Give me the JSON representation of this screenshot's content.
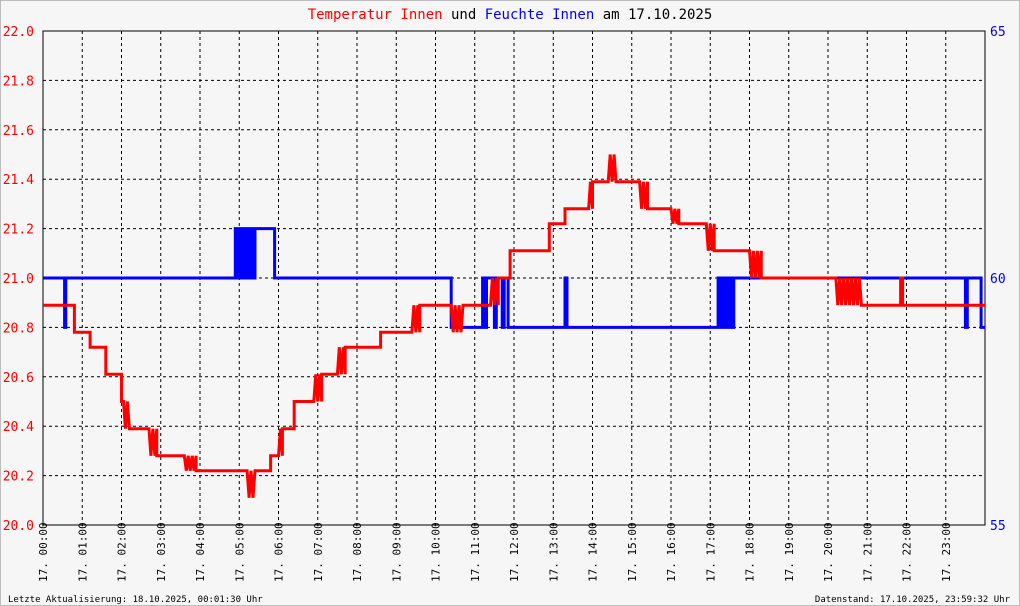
{
  "chart_data": {
    "type": "line",
    "title_parts": [
      {
        "text": "Temperatur Innen",
        "color": "#ff0000"
      },
      {
        "text": " und ",
        "color": "#000000"
      },
      {
        "text": "Feuchte Innen",
        "color": "#0000ff"
      },
      {
        "text": " am 17.10.2025",
        "color": "#000000"
      }
    ],
    "x_unit": "hours",
    "xlim": [
      0,
      24
    ],
    "x_tick_labels": [
      "17. 00:00",
      "17. 01:00",
      "17. 02:00",
      "17. 03:00",
      "17. 04:00",
      "17. 05:00",
      "17. 06:00",
      "17. 07:00",
      "17. 08:00",
      "17. 09:00",
      "17. 10:00",
      "17. 11:00",
      "17. 12:00",
      "17. 13:00",
      "17. 14:00",
      "17. 15:00",
      "17. 16:00",
      "17. 17:00",
      "17. 18:00",
      "17. 19:00",
      "17. 20:00",
      "17. 21:00",
      "17. 22:00",
      "17. 23:00"
    ],
    "y_left": {
      "lim": [
        20.0,
        22.0
      ],
      "ticks": [
        "20.0",
        "20.2",
        "20.4",
        "20.6",
        "20.8",
        "21.0",
        "21.2",
        "21.4",
        "21.6",
        "21.8",
        "22.0"
      ],
      "color": "#ff0000"
    },
    "y_right": {
      "lim": [
        55,
        65
      ],
      "ticks": [
        "55",
        "60",
        "65"
      ],
      "color": "#0000ff"
    },
    "grid": true,
    "series": [
      {
        "name": "Temperatur Innen",
        "axis": "left",
        "color": "#ff0000",
        "x": [
          0.0,
          0.8,
          0.8,
          1.2,
          1.2,
          1.6,
          1.6,
          2.0,
          2.0,
          2.05,
          2.1,
          2.15,
          2.2,
          2.2,
          2.7,
          2.75,
          2.8,
          2.85,
          2.9,
          2.9,
          3.6,
          3.65,
          3.7,
          3.75,
          3.8,
          3.85,
          3.9,
          3.9,
          5.2,
          5.25,
          5.3,
          5.35,
          5.4,
          5.4,
          5.8,
          5.8,
          6.0,
          6.05,
          6.1,
          6.1,
          6.4,
          6.4,
          6.9,
          6.95,
          7.0,
          7.05,
          7.1,
          7.1,
          7.5,
          7.55,
          7.6,
          7.65,
          7.7,
          7.7,
          8.6,
          8.6,
          9.4,
          9.45,
          9.5,
          9.55,
          9.6,
          9.6,
          10.4,
          10.45,
          10.5,
          10.55,
          10.6,
          10.65,
          10.7,
          10.7,
          11.4,
          11.45,
          11.5,
          11.55,
          11.6,
          11.6,
          11.9,
          11.9,
          12.9,
          12.9,
          13.3,
          13.3,
          13.9,
          13.95,
          14.0,
          14.0,
          14.4,
          14.45,
          14.5,
          14.55,
          14.6,
          14.6,
          15.2,
          15.25,
          15.3,
          15.35,
          15.4,
          15.4,
          16.0,
          16.05,
          16.1,
          16.15,
          16.2,
          16.2,
          16.9,
          16.95,
          17.0,
          17.05,
          17.1,
          17.1,
          18.0,
          18.05,
          18.1,
          18.15,
          18.2,
          18.25,
          18.3,
          18.3,
          20.2,
          20.25,
          20.3,
          20.35,
          20.4,
          20.45,
          20.5,
          20.55,
          20.6,
          20.65,
          20.7,
          20.75,
          20.8,
          20.85,
          20.9,
          21.0,
          21.85,
          21.85,
          21.9,
          21.9,
          24.0
        ],
        "values": [
          20.89,
          20.89,
          20.78,
          20.78,
          20.72,
          20.72,
          20.61,
          20.61,
          20.5,
          20.5,
          20.39,
          20.5,
          20.39,
          20.39,
          20.39,
          20.28,
          20.39,
          20.28,
          20.39,
          20.28,
          20.28,
          20.22,
          20.28,
          20.22,
          20.28,
          20.22,
          20.28,
          20.22,
          20.22,
          20.11,
          20.22,
          20.11,
          20.22,
          20.22,
          20.22,
          20.28,
          20.28,
          20.39,
          20.28,
          20.39,
          20.39,
          20.5,
          20.5,
          20.61,
          20.5,
          20.61,
          20.5,
          20.61,
          20.61,
          20.72,
          20.61,
          20.72,
          20.61,
          20.72,
          20.72,
          20.78,
          20.78,
          20.89,
          20.78,
          20.89,
          20.78,
          20.89,
          20.89,
          20.78,
          20.89,
          20.78,
          20.89,
          20.78,
          20.89,
          20.89,
          20.89,
          21.0,
          20.89,
          21.0,
          20.89,
          21.0,
          21.0,
          21.11,
          21.11,
          21.22,
          21.22,
          21.28,
          21.28,
          21.39,
          21.28,
          21.39,
          21.39,
          21.5,
          21.39,
          21.5,
          21.39,
          21.39,
          21.39,
          21.28,
          21.39,
          21.28,
          21.39,
          21.28,
          21.28,
          21.22,
          21.28,
          21.22,
          21.28,
          21.22,
          21.22,
          21.11,
          21.22,
          21.11,
          21.22,
          21.11,
          21.11,
          21.0,
          21.11,
          21.0,
          21.11,
          21.0,
          21.11,
          21.0,
          21.0,
          20.89,
          21.0,
          20.89,
          21.0,
          20.89,
          21.0,
          20.89,
          21.0,
          20.89,
          21.0,
          20.89,
          21.0,
          20.89,
          20.89,
          20.89,
          20.89,
          21.0,
          21.0,
          20.89,
          20.89
        ]
      },
      {
        "name": "Feuchte Innen",
        "axis": "right",
        "color": "#0000ff",
        "x": [
          0.0,
          0.55,
          0.55,
          0.58,
          0.58,
          4.9,
          4.9,
          4.95,
          4.95,
          5.0,
          5.0,
          5.05,
          5.05,
          5.1,
          5.1,
          5.15,
          5.15,
          5.2,
          5.2,
          5.25,
          5.25,
          5.3,
          5.3,
          5.35,
          5.35,
          5.4,
          5.4,
          5.45,
          5.45,
          5.9,
          5.9,
          10.4,
          10.4,
          11.2,
          11.2,
          11.25,
          11.25,
          11.3,
          11.3,
          11.5,
          11.5,
          11.55,
          11.55,
          11.7,
          11.7,
          11.75,
          11.75,
          11.85,
          11.85,
          12.0,
          12.0,
          13.3,
          13.3,
          13.35,
          13.35,
          17.2,
          17.2,
          17.25,
          17.25,
          17.3,
          17.3,
          17.35,
          17.35,
          17.4,
          17.4,
          17.45,
          17.45,
          17.5,
          17.5,
          17.55,
          17.55,
          17.6,
          17.6,
          17.65,
          17.65,
          23.5,
          23.5,
          23.55,
          23.55,
          23.9,
          23.9,
          24.0
        ],
        "values": [
          60,
          60,
          59,
          59,
          60,
          60,
          61,
          61,
          60,
          60,
          61,
          61,
          60,
          60,
          61,
          61,
          60,
          60,
          61,
          61,
          60,
          60,
          61,
          61,
          60,
          60,
          61,
          61,
          61,
          61,
          60,
          60,
          59,
          59,
          60,
          60,
          59,
          59,
          60,
          60,
          59,
          59,
          60,
          60,
          59,
          59,
          60,
          60,
          59,
          59,
          59,
          59,
          60,
          60,
          59,
          59,
          60,
          60,
          59,
          59,
          60,
          60,
          59,
          59,
          60,
          60,
          59,
          59,
          60,
          60,
          59,
          59,
          60,
          60,
          60,
          60,
          59,
          59,
          60,
          60,
          59,
          59
        ]
      }
    ]
  },
  "footer": {
    "left": "Letzte Aktualisierung: 18.10.2025, 00:01:30 Uhr",
    "right": "Datenstand: 17.10.2025, 23:59:32 Uhr"
  }
}
